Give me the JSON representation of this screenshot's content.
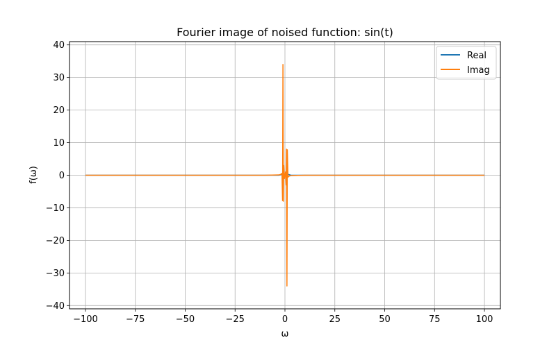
{
  "chart_data": {
    "type": "line",
    "title": "Fourier image of noised function: sin(t)",
    "xlabel": "ω",
    "ylabel": "f(ω)",
    "xlim": [
      -108,
      108
    ],
    "ylim": [
      -41,
      41
    ],
    "x_ticks": [
      -100,
      -75,
      -50,
      -25,
      0,
      25,
      50,
      75,
      100
    ],
    "x_tick_labels": [
      "−100",
      "−75",
      "−50",
      "−25",
      "0",
      "25",
      "50",
      "75",
      "100"
    ],
    "y_ticks": [
      -40,
      -30,
      -20,
      -10,
      0,
      10,
      20,
      30,
      40
    ],
    "y_tick_labels": [
      "−40",
      "−30",
      "−20",
      "−10",
      "0",
      "10",
      "20",
      "30",
      "40"
    ],
    "grid": true,
    "legend_position": "top-right",
    "series": [
      {
        "name": "Real",
        "color": "#1f77b4",
        "x": [
          -100,
          -50,
          -10,
          -3,
          -1.5,
          -1,
          -0.5,
          0,
          0.5,
          1,
          1.5,
          3,
          10,
          50,
          100
        ],
        "y": [
          0,
          0,
          0,
          0,
          0.3,
          -0.5,
          0.3,
          0,
          0.3,
          -0.5,
          0.3,
          0,
          0,
          0,
          0
        ]
      },
      {
        "name": "Imag",
        "color": "#ff7f0e",
        "x": [
          -100,
          -50,
          -10,
          -3,
          -2,
          -1.5,
          -1.2,
          -1.0,
          -0.8,
          -0.6,
          -0.3,
          0,
          0.3,
          0.6,
          0.8,
          1.0,
          1.2,
          1.5,
          2,
          3,
          10,
          50,
          100
        ],
        "y": [
          0,
          0,
          0,
          0.1,
          0.3,
          0.6,
          -7.8,
          34,
          -8,
          3,
          -1,
          0,
          1,
          -3,
          8,
          -34,
          7.8,
          -0.6,
          -0.3,
          -0.1,
          0,
          0,
          0
        ]
      }
    ]
  }
}
